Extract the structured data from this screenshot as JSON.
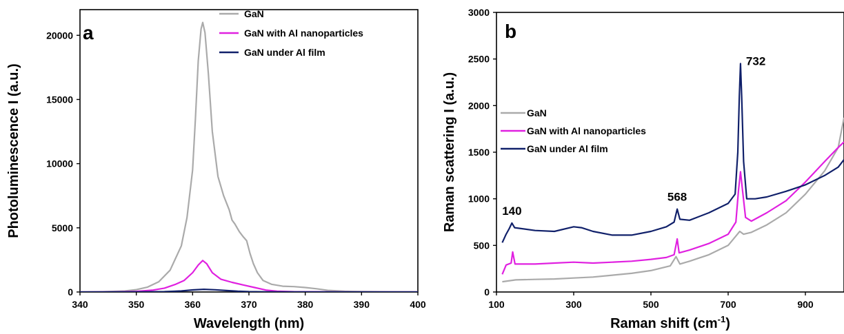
{
  "chart_data": [
    {
      "type": "line",
      "panel_label": "a",
      "xlabel": "Wavelength (nm)",
      "ylabel": "Photoluminescence I (a.u.)",
      "xlim": [
        340,
        400
      ],
      "ylim": [
        0,
        22000
      ],
      "x_ticks": [
        340,
        350,
        360,
        370,
        380,
        390,
        400
      ],
      "y_ticks": [
        0,
        5000,
        10000,
        15000,
        20000
      ],
      "grid": false,
      "legend_position": "top-right",
      "series": [
        {
          "name": "GaN",
          "color": "#aaaaaa",
          "points": [
            [
              340,
              0
            ],
            [
              344,
              20
            ],
            [
              348,
              80
            ],
            [
              350,
              180
            ],
            [
              352,
              380
            ],
            [
              354,
              800
            ],
            [
              356,
              1700
            ],
            [
              358,
              3600
            ],
            [
              359,
              5800
            ],
            [
              360,
              9500
            ],
            [
              360.5,
              13500
            ],
            [
              361,
              18000
            ],
            [
              361.5,
              20500
            ],
            [
              361.8,
              21000
            ],
            [
              362.2,
              20200
            ],
            [
              362.8,
              17000
            ],
            [
              363.5,
              12500
            ],
            [
              364.5,
              9000
            ],
            [
              365.5,
              7500
            ],
            [
              366.5,
              6400
            ],
            [
              367,
              5600
            ],
            [
              367.5,
              5300
            ],
            [
              368.3,
              4700
            ],
            [
              369,
              4300
            ],
            [
              369.6,
              4000
            ],
            [
              370.2,
              3000
            ],
            [
              370.8,
              2200
            ],
            [
              371.5,
              1500
            ],
            [
              372.5,
              900
            ],
            [
              374,
              600
            ],
            [
              376,
              450
            ],
            [
              378,
              420
            ],
            [
              380,
              350
            ],
            [
              382,
              250
            ],
            [
              384,
              130
            ],
            [
              387,
              60
            ],
            [
              390,
              30
            ],
            [
              395,
              15
            ],
            [
              400,
              10
            ]
          ]
        },
        {
          "name": "GaN with Al nanoparticles",
          "color": "#e020e0",
          "points": [
            [
              340,
              0
            ],
            [
              346,
              10
            ],
            [
              350,
              50
            ],
            [
              353,
              150
            ],
            [
              355,
              300
            ],
            [
              357,
              600
            ],
            [
              358.5,
              900
            ],
            [
              360,
              1500
            ],
            [
              361,
              2100
            ],
            [
              361.8,
              2450
            ],
            [
              362.5,
              2200
            ],
            [
              363.5,
              1500
            ],
            [
              365,
              1000
            ],
            [
              367,
              750
            ],
            [
              369,
              550
            ],
            [
              371,
              350
            ],
            [
              373,
              150
            ],
            [
              375,
              60
            ],
            [
              378,
              20
            ],
            [
              385,
              5
            ],
            [
              400,
              0
            ]
          ]
        },
        {
          "name": "GaN under Al film",
          "color": "#10206a",
          "points": [
            [
              340,
              0
            ],
            [
              350,
              5
            ],
            [
              355,
              25
            ],
            [
              358,
              80
            ],
            [
              360,
              160
            ],
            [
              362,
              210
            ],
            [
              364,
              170
            ],
            [
              366,
              110
            ],
            [
              368,
              60
            ],
            [
              370,
              25
            ],
            [
              375,
              5
            ],
            [
              400,
              0
            ]
          ]
        }
      ]
    },
    {
      "type": "line",
      "panel_label": "b",
      "xlabel_text": "Raman shift (cm",
      "xlabel_sup": "-1",
      "xlabel_end": ")",
      "ylabel": "Raman scattering I (a.u.)",
      "xlim": [
        100,
        1000
      ],
      "ylim": [
        0,
        3000
      ],
      "x_ticks": [
        100,
        300,
        500,
        700,
        900
      ],
      "y_ticks": [
        0,
        500,
        1000,
        1500,
        2000,
        2500,
        3000
      ],
      "grid": false,
      "legend_position": "center-left",
      "annotations": [
        {
          "text": "140",
          "x": 140,
          "y": 740
        },
        {
          "text": "568",
          "x": 568,
          "y": 890
        },
        {
          "text": "732",
          "x": 732,
          "y": 2450
        }
      ],
      "series": [
        {
          "name": "GaN",
          "color": "#aaaaaa",
          "points": [
            [
              115,
              110
            ],
            [
              150,
              130
            ],
            [
              200,
              135
            ],
            [
              250,
              140
            ],
            [
              300,
              150
            ],
            [
              350,
              160
            ],
            [
              400,
              180
            ],
            [
              450,
              200
            ],
            [
              500,
              230
            ],
            [
              550,
              280
            ],
            [
              565,
              380
            ],
            [
              575,
              300
            ],
            [
              600,
              330
            ],
            [
              650,
              400
            ],
            [
              700,
              500
            ],
            [
              720,
              600
            ],
            [
              730,
              650
            ],
            [
              740,
              620
            ],
            [
              760,
              640
            ],
            [
              800,
              720
            ],
            [
              850,
              850
            ],
            [
              900,
              1050
            ],
            [
              950,
              1300
            ],
            [
              985,
              1550
            ],
            [
              1000,
              1870
            ]
          ]
        },
        {
          "name": "GaN with Al nanoparticles",
          "color": "#e020e0",
          "points": [
            [
              115,
              190
            ],
            [
              125,
              290
            ],
            [
              138,
              310
            ],
            [
              142,
              430
            ],
            [
              148,
              300
            ],
            [
              200,
              300
            ],
            [
              250,
              310
            ],
            [
              300,
              320
            ],
            [
              350,
              310
            ],
            [
              400,
              320
            ],
            [
              450,
              330
            ],
            [
              500,
              350
            ],
            [
              540,
              370
            ],
            [
              560,
              400
            ],
            [
              568,
              570
            ],
            [
              573,
              420
            ],
            [
              600,
              450
            ],
            [
              650,
              520
            ],
            [
              700,
              620
            ],
            [
              720,
              750
            ],
            [
              727,
              1100
            ],
            [
              732,
              1290
            ],
            [
              737,
              1100
            ],
            [
              745,
              800
            ],
            [
              760,
              760
            ],
            [
              800,
              850
            ],
            [
              850,
              980
            ],
            [
              900,
              1180
            ],
            [
              950,
              1400
            ],
            [
              985,
              1550
            ],
            [
              1000,
              1610
            ]
          ]
        },
        {
          "name": "GaN under Al film",
          "color": "#10206a",
          "points": [
            [
              115,
              530
            ],
            [
              125,
              620
            ],
            [
              133,
              680
            ],
            [
              140,
              740
            ],
            [
              147,
              690
            ],
            [
              200,
              660
            ],
            [
              250,
              650
            ],
            [
              300,
              700
            ],
            [
              320,
              690
            ],
            [
              350,
              650
            ],
            [
              400,
              610
            ],
            [
              450,
              610
            ],
            [
              500,
              650
            ],
            [
              540,
              700
            ],
            [
              560,
              750
            ],
            [
              568,
              890
            ],
            [
              575,
              780
            ],
            [
              600,
              770
            ],
            [
              650,
              850
            ],
            [
              700,
              950
            ],
            [
              718,
              1050
            ],
            [
              725,
              1500
            ],
            [
              729,
              2100
            ],
            [
              732,
              2450
            ],
            [
              735,
              2100
            ],
            [
              740,
              1400
            ],
            [
              748,
              1000
            ],
            [
              770,
              1000
            ],
            [
              800,
              1020
            ],
            [
              850,
              1080
            ],
            [
              900,
              1150
            ],
            [
              950,
              1250
            ],
            [
              985,
              1340
            ],
            [
              1000,
              1420
            ]
          ]
        }
      ]
    }
  ]
}
